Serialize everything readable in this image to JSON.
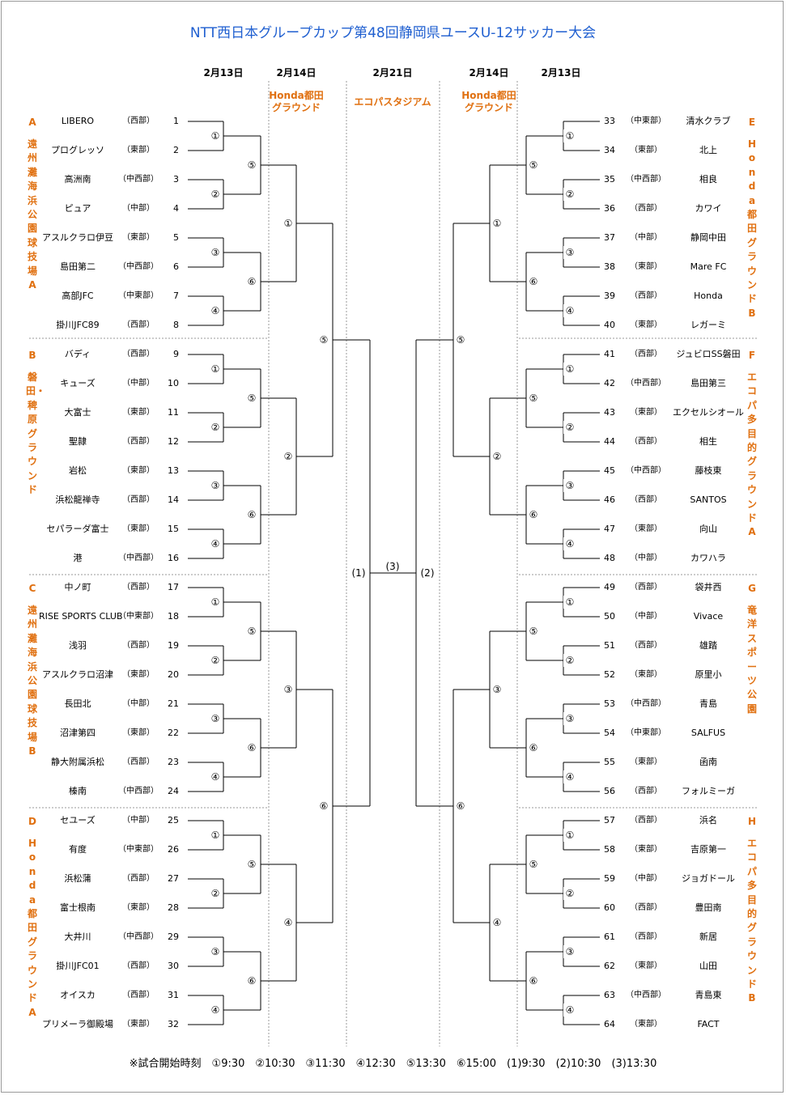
{
  "title": "NTT西日本グループカップ第48回静岡県ユースU-12サッカー大会",
  "dates": {
    "left_r1": "2月13日",
    "left_r2": "2月14日",
    "center": "2月21日",
    "right_r2": "2月14日",
    "right_r1": "2月13日"
  },
  "venues": {
    "left": "Honda都田\nグラウンド",
    "center": "エコパスタジアム",
    "right": "Honda都田\nグラウンド"
  },
  "groups": [
    {
      "letter": "A",
      "venue": "遠州灘海浜公園球技場A"
    },
    {
      "letter": "B",
      "venue": "磐田・稗原グラウンド"
    },
    {
      "letter": "C",
      "venue": "遠州灘海浜公園球技場B"
    },
    {
      "letter": "D",
      "venue": "Honda都田グラウンドA"
    },
    {
      "letter": "E",
      "venue": "Honda都田グラウンドB"
    },
    {
      "letter": "F",
      "venue": "エコパ多目的グラウンドA"
    },
    {
      "letter": "G",
      "venue": "竜洋スポーツ公園"
    },
    {
      "letter": "H",
      "venue": "エコパ多目的グラウンドB"
    }
  ],
  "left_teams": [
    {
      "name": "LIBERO",
      "region": "（西部）",
      "num": "1"
    },
    {
      "name": "プログレッソ",
      "region": "（東部）",
      "num": "2"
    },
    {
      "name": "高洲南",
      "region": "（中西部）",
      "num": "3"
    },
    {
      "name": "ピュア",
      "region": "（中部）",
      "num": "4"
    },
    {
      "name": "アスルクラロ伊豆",
      "region": "（東部）",
      "num": "5"
    },
    {
      "name": "島田第二",
      "region": "（中西部）",
      "num": "6"
    },
    {
      "name": "高部JFC",
      "region": "（中東部）",
      "num": "7"
    },
    {
      "name": "掛川JFC89",
      "region": "（西部）",
      "num": "8"
    },
    {
      "name": "バディ",
      "region": "（西部）",
      "num": "9"
    },
    {
      "name": "キューズ",
      "region": "（中部）",
      "num": "10"
    },
    {
      "name": "大富士",
      "region": "（東部）",
      "num": "11"
    },
    {
      "name": "聖隷",
      "region": "（西部）",
      "num": "12"
    },
    {
      "name": "岩松",
      "region": "（東部）",
      "num": "13"
    },
    {
      "name": "浜松龍禅寺",
      "region": "（西部）",
      "num": "14"
    },
    {
      "name": "セパラーダ富士",
      "region": "（東部）",
      "num": "15"
    },
    {
      "name": "港",
      "region": "（中西部）",
      "num": "16"
    },
    {
      "name": "中ノ町",
      "region": "（西部）",
      "num": "17"
    },
    {
      "name": "RISE SPORTS CLUB",
      "region": "（中東部）",
      "num": "18"
    },
    {
      "name": "浅羽",
      "region": "（西部）",
      "num": "19"
    },
    {
      "name": "アスルクラロ沼津",
      "region": "（東部）",
      "num": "20"
    },
    {
      "name": "長田北",
      "region": "（中部）",
      "num": "21"
    },
    {
      "name": "沼津第四",
      "region": "（東部）",
      "num": "22"
    },
    {
      "name": "静大附属浜松",
      "region": "（西部）",
      "num": "23"
    },
    {
      "name": "榛南",
      "region": "（中西部）",
      "num": "24"
    },
    {
      "name": "セユーズ",
      "region": "（中部）",
      "num": "25"
    },
    {
      "name": "有度",
      "region": "（中東部）",
      "num": "26"
    },
    {
      "name": "浜松蒲",
      "region": "（西部）",
      "num": "27"
    },
    {
      "name": "富士根南",
      "region": "（東部）",
      "num": "28"
    },
    {
      "name": "大井川",
      "region": "（中西部）",
      "num": "29"
    },
    {
      "name": "掛川JFC01",
      "region": "（西部）",
      "num": "30"
    },
    {
      "name": "オイスカ",
      "region": "（西部）",
      "num": "31"
    },
    {
      "name": "プリメーラ御殿場",
      "region": "（東部）",
      "num": "32"
    }
  ],
  "right_teams": [
    {
      "name": "清水クラブ",
      "region": "（中東部）",
      "num": "33"
    },
    {
      "name": "北上",
      "region": "（東部）",
      "num": "34"
    },
    {
      "name": "相良",
      "region": "（中西部）",
      "num": "35"
    },
    {
      "name": "カワイ",
      "region": "（西部）",
      "num": "36"
    },
    {
      "name": "静岡中田",
      "region": "（中部）",
      "num": "37"
    },
    {
      "name": "Mare FC",
      "region": "（東部）",
      "num": "38"
    },
    {
      "name": "Honda",
      "region": "（西部）",
      "num": "39"
    },
    {
      "name": "レガーミ",
      "region": "（東部）",
      "num": "40"
    },
    {
      "name": "ジュビロSS磐田",
      "region": "（西部）",
      "num": "41"
    },
    {
      "name": "島田第三",
      "region": "（中西部）",
      "num": "42"
    },
    {
      "name": "エクセルシオール",
      "region": "（東部）",
      "num": "43"
    },
    {
      "name": "相生",
      "region": "（西部）",
      "num": "44"
    },
    {
      "name": "藤枝東",
      "region": "（中西部）",
      "num": "45"
    },
    {
      "name": "SANTOS",
      "region": "（西部）",
      "num": "46"
    },
    {
      "name": "向山",
      "region": "（東部）",
      "num": "47"
    },
    {
      "name": "カワハラ",
      "region": "（中部）",
      "num": "48"
    },
    {
      "name": "袋井西",
      "region": "（西部）",
      "num": "49"
    },
    {
      "name": "Vivace",
      "region": "（中部）",
      "num": "50"
    },
    {
      "name": "雄踏",
      "region": "（西部）",
      "num": "51"
    },
    {
      "name": "原里小",
      "region": "（東部）",
      "num": "52"
    },
    {
      "name": "青島",
      "region": "（中西部）",
      "num": "53"
    },
    {
      "name": "SALFUS",
      "region": "（中東部）",
      "num": "54"
    },
    {
      "name": "函南",
      "region": "（東部）",
      "num": "55"
    },
    {
      "name": "フォルミーガ",
      "region": "（西部）",
      "num": "56"
    },
    {
      "name": "浜名",
      "region": "（西部）",
      "num": "57"
    },
    {
      "name": "吉原第一",
      "region": "（東部）",
      "num": "58"
    },
    {
      "name": "ジョガドール",
      "region": "（中部）",
      "num": "59"
    },
    {
      "name": "豊田南",
      "region": "（西部）",
      "num": "60"
    },
    {
      "name": "新居",
      "region": "（西部）",
      "num": "61"
    },
    {
      "name": "山田",
      "region": "（東部）",
      "num": "62"
    },
    {
      "name": "青島東",
      "region": "（中西部）",
      "num": "63"
    },
    {
      "name": "FACT",
      "region": "（東部）",
      "num": "64"
    }
  ],
  "match_marks": {
    "r1": [
      "①",
      "②",
      "③",
      "④"
    ],
    "r2": [
      "⑤",
      "⑥"
    ],
    "r3": [
      "①",
      "②",
      "③",
      "④"
    ],
    "r4": [
      "⑤",
      "⑥"
    ],
    "semi_left": "(1)",
    "semi_right": "(2)",
    "final": "(3)"
  },
  "footer": "※試合開始時刻　①9:30　②10:30　③11:30　④12:30　⑤13:30　⑥15:00　(1)9:30　(2)10:30　(3)13:30"
}
